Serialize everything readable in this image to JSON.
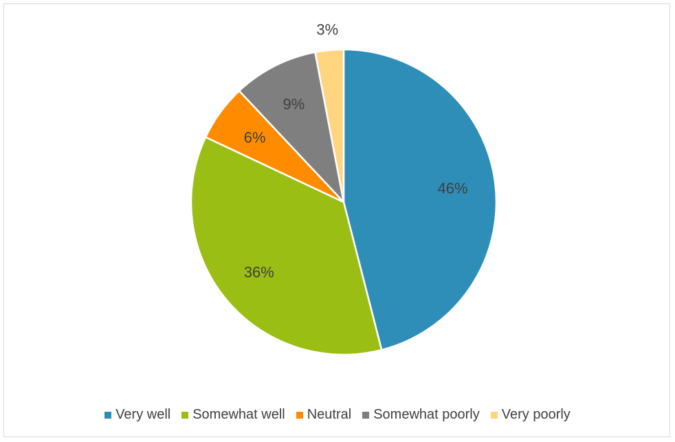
{
  "chart_data": {
    "type": "pie",
    "title": "",
    "categories": [
      "Very well",
      "Somewhat well",
      "Neutral",
      "Somewhat poorly",
      "Very poorly"
    ],
    "values": [
      46,
      36,
      6,
      9,
      3
    ],
    "data_labels": [
      "46%",
      "36%",
      "6%",
      "9%",
      "3%"
    ],
    "colors": [
      "#2E8EB8",
      "#9BBE14",
      "#FF8C00",
      "#7F7F7F",
      "#FFD580"
    ],
    "legend_position": "bottom",
    "start_angle": "12 o'clock",
    "direction": "clockwise"
  },
  "legend": {
    "items": [
      {
        "label": "Very well",
        "color": "#2E8EB8"
      },
      {
        "label": "Somewhat well",
        "color": "#9BBE14"
      },
      {
        "label": "Neutral",
        "color": "#FF8C00"
      },
      {
        "label": "Somewhat poorly",
        "color": "#7F7F7F"
      },
      {
        "label": "Very poorly",
        "color": "#FFD580"
      }
    ]
  }
}
